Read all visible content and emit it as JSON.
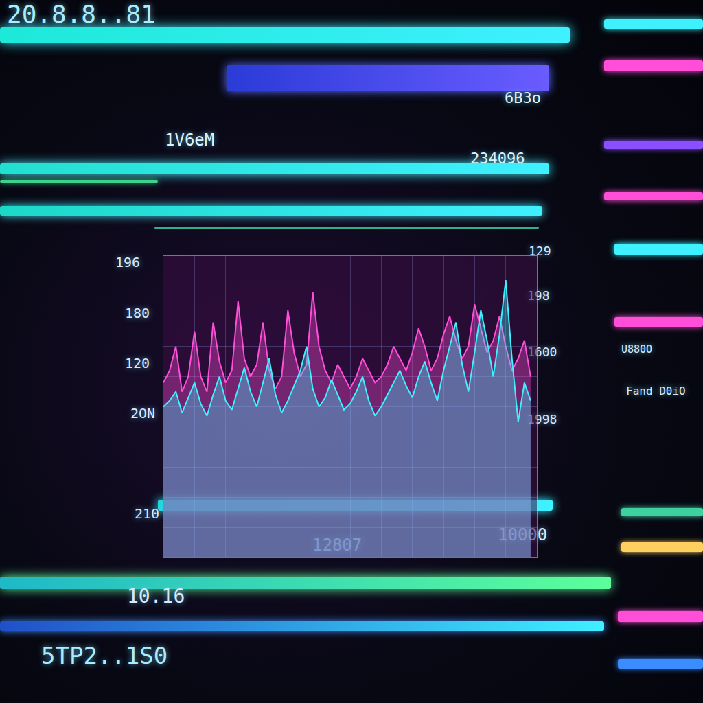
{
  "chart_data": {
    "type": "area",
    "x": [
      0,
      1,
      2,
      3,
      4,
      5,
      6,
      7,
      8,
      9,
      10,
      11,
      12,
      13,
      14,
      15,
      16,
      17,
      18,
      19,
      20,
      21,
      22,
      23,
      24,
      25,
      26,
      27,
      28,
      29,
      30,
      31,
      32,
      33,
      34,
      35,
      36,
      37,
      38,
      39,
      40,
      41,
      42,
      43,
      44,
      45,
      46,
      47,
      48,
      49,
      50,
      51,
      52,
      53,
      54,
      55,
      56,
      57,
      58,
      59
    ],
    "xlim": [
      0,
      60
    ],
    "xticks": [
      0,
      5,
      10,
      15,
      20,
      25,
      30,
      35,
      40,
      45,
      50,
      55,
      60
    ],
    "ylim": [
      0,
      100
    ],
    "yticks": [
      0,
      10,
      20,
      30,
      40,
      50,
      60,
      70,
      80,
      90,
      100
    ],
    "grid": true,
    "tick_labels": false,
    "series": [
      {
        "color": "#ff4fd8",
        "values": [
          58,
          62,
          70,
          55,
          60,
          75,
          60,
          55,
          78,
          65,
          58,
          62,
          85,
          66,
          60,
          64,
          78,
          62,
          56,
          60,
          82,
          68,
          60,
          64,
          88,
          70,
          62,
          58,
          64,
          60,
          56,
          60,
          66,
          62,
          58,
          60,
          64,
          70,
          66,
          62,
          68,
          76,
          70,
          62,
          66,
          74,
          80,
          72,
          66,
          70,
          84,
          76,
          68,
          72,
          80,
          70,
          62,
          66,
          72,
          60
        ]
      },
      {
        "color": "#3ff0ff",
        "values": [
          50,
          52,
          55,
          48,
          53,
          58,
          51,
          47,
          54,
          60,
          52,
          49,
          56,
          63,
          55,
          50,
          58,
          66,
          54,
          48,
          52,
          57,
          62,
          70,
          56,
          50,
          53,
          59,
          54,
          49,
          51,
          55,
          60,
          52,
          47,
          50,
          54,
          58,
          62,
          57,
          53,
          60,
          65,
          58,
          52,
          62,
          70,
          78,
          64,
          55,
          68,
          82,
          72,
          60,
          74,
          92,
          66,
          45,
          58,
          52
        ]
      }
    ]
  },
  "labels": {
    "top": [
      "20.8.8..81",
      "6B3o",
      "1V6eM",
      "234096"
    ],
    "left_axis": [
      "196",
      "180",
      "120",
      "2ON",
      "210"
    ],
    "right_axis": [
      "129",
      "198",
      "1600",
      "1998"
    ],
    "bottom": [
      "12807",
      "10000",
      "10.16",
      "5TP2..1S0"
    ],
    "panel": [
      "U880O",
      "Fand D0iO"
    ]
  }
}
